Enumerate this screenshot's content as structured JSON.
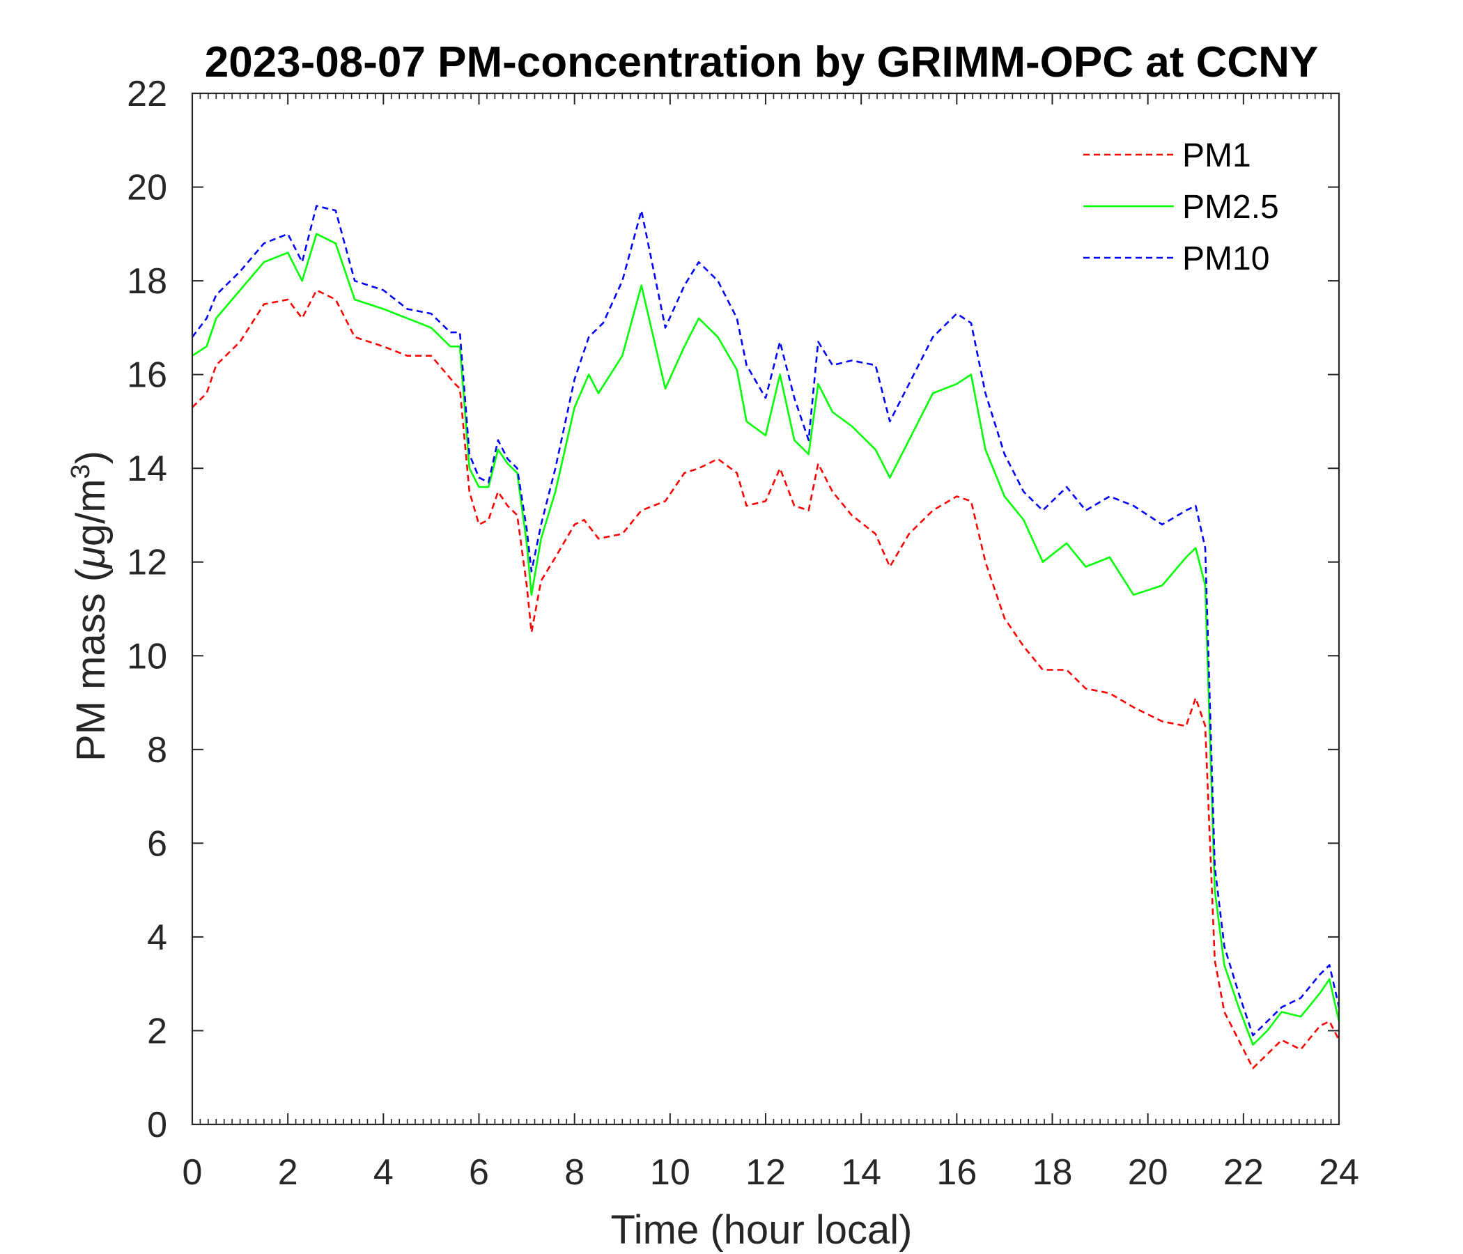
{
  "chart_data": {
    "type": "line",
    "title": "2023-08-07 PM-concentration by GRIMM-OPC at CCNY",
    "xlabel": "Time (hour local)",
    "ylabel_prefix": "PM mass (",
    "ylabel_mu": "μ",
    "ylabel_unit": "g/m",
    "ylabel_sup": "3",
    "ylabel_suffix": ")",
    "xlim": [
      0,
      24
    ],
    "ylim": [
      0,
      22
    ],
    "xticks": [
      0,
      2,
      4,
      6,
      8,
      10,
      12,
      14,
      16,
      18,
      20,
      22,
      24
    ],
    "yticks": [
      0,
      2,
      4,
      6,
      8,
      10,
      12,
      14,
      16,
      18,
      20,
      22
    ],
    "xtick_labels": [
      "0",
      "2",
      "4",
      "6",
      "8",
      "10",
      "12",
      "14",
      "16",
      "18",
      "20",
      "22",
      "24"
    ],
    "ytick_labels": [
      "0",
      "2",
      "4",
      "6",
      "8",
      "10",
      "12",
      "14",
      "16",
      "18",
      "20",
      "22"
    ],
    "grid": false,
    "legend_position": "top-right",
    "series": [
      {
        "name": "PM1",
        "color": "#ff0000",
        "style": "dashed",
        "x": [
          0,
          0.3,
          0.5,
          1.0,
          1.5,
          2.0,
          2.3,
          2.6,
          3.0,
          3.4,
          4.0,
          4.5,
          5.0,
          5.5,
          5.6,
          5.8,
          6.0,
          6.2,
          6.4,
          6.6,
          6.8,
          7.0,
          7.1,
          7.3,
          7.6,
          8.0,
          8.2,
          8.5,
          9.0,
          9.4,
          9.9,
          10.3,
          10.6,
          11.0,
          11.4,
          11.6,
          12.0,
          12.3,
          12.6,
          12.9,
          13.1,
          13.4,
          13.8,
          14.3,
          14.6,
          15.0,
          15.5,
          16.0,
          16.3,
          16.6,
          17.0,
          17.4,
          17.8,
          18.3,
          18.7,
          19.2,
          19.7,
          20.3,
          20.8,
          21.0,
          21.2,
          21.4,
          21.6,
          21.9,
          22.2,
          22.5,
          22.8,
          23.2,
          23.6,
          23.8,
          24.0
        ],
        "values": [
          15.3,
          15.6,
          16.2,
          16.7,
          17.5,
          17.6,
          17.2,
          17.8,
          17.6,
          16.8,
          16.6,
          16.4,
          16.4,
          15.8,
          15.7,
          13.5,
          12.8,
          12.9,
          13.5,
          13.2,
          13.0,
          11.5,
          10.5,
          11.6,
          12.1,
          12.8,
          12.9,
          12.5,
          12.6,
          13.1,
          13.3,
          13.9,
          14.0,
          14.2,
          13.9,
          13.2,
          13.3,
          14.0,
          13.2,
          13.1,
          14.1,
          13.5,
          13.0,
          12.6,
          11.9,
          12.6,
          13.1,
          13.4,
          13.3,
          12.0,
          10.8,
          10.2,
          9.7,
          9.7,
          9.3,
          9.2,
          8.9,
          8.6,
          8.5,
          9.1,
          8.5,
          3.5,
          2.4,
          1.8,
          1.2,
          1.5,
          1.8,
          1.6,
          2.1,
          2.2,
          1.8
        ]
      },
      {
        "name": "PM2.5",
        "color": "#00ff00",
        "style": "solid",
        "x": [
          0,
          0.3,
          0.5,
          1.0,
          1.5,
          2.0,
          2.3,
          2.6,
          3.0,
          3.4,
          4.0,
          4.5,
          5.0,
          5.4,
          5.6,
          5.8,
          6.0,
          6.2,
          6.4,
          6.6,
          6.8,
          7.0,
          7.1,
          7.3,
          7.6,
          8.0,
          8.3,
          8.5,
          9.0,
          9.4,
          9.9,
          10.3,
          10.6,
          11.0,
          11.4,
          11.6,
          12.0,
          12.3,
          12.6,
          12.9,
          13.1,
          13.4,
          13.8,
          14.3,
          14.6,
          15.0,
          15.5,
          16.0,
          16.3,
          16.6,
          17.0,
          17.4,
          17.8,
          18.3,
          18.7,
          19.2,
          19.7,
          20.3,
          20.8,
          21.0,
          21.2,
          21.4,
          21.6,
          21.9,
          22.2,
          22.5,
          22.8,
          23.2,
          23.6,
          23.8,
          24.0
        ],
        "values": [
          16.4,
          16.6,
          17.2,
          17.8,
          18.4,
          18.6,
          18.0,
          19.0,
          18.8,
          17.6,
          17.4,
          17.2,
          17.0,
          16.6,
          16.6,
          14.0,
          13.6,
          13.6,
          14.4,
          14.1,
          13.9,
          12.4,
          11.3,
          12.5,
          13.5,
          15.3,
          16.0,
          15.6,
          16.4,
          17.9,
          15.7,
          16.6,
          17.2,
          16.8,
          16.1,
          15.0,
          14.7,
          16.0,
          14.6,
          14.3,
          15.8,
          15.2,
          14.9,
          14.4,
          13.8,
          14.6,
          15.6,
          15.8,
          16.0,
          14.4,
          13.4,
          12.9,
          12.0,
          12.4,
          11.9,
          12.1,
          11.3,
          11.5,
          12.1,
          12.3,
          11.5,
          5.0,
          3.4,
          2.5,
          1.7,
          2.0,
          2.4,
          2.3,
          2.8,
          3.1,
          2.2
        ]
      },
      {
        "name": "PM10",
        "color": "#0000ff",
        "style": "dashed",
        "x": [
          0,
          0.3,
          0.5,
          1.0,
          1.5,
          2.0,
          2.3,
          2.6,
          3.0,
          3.4,
          4.0,
          4.5,
          5.0,
          5.4,
          5.6,
          5.8,
          6.0,
          6.2,
          6.4,
          6.6,
          6.8,
          7.0,
          7.1,
          7.3,
          7.6,
          8.0,
          8.3,
          8.6,
          9.0,
          9.4,
          9.9,
          10.3,
          10.6,
          11.0,
          11.4,
          11.6,
          12.0,
          12.3,
          12.6,
          12.9,
          13.1,
          13.4,
          13.8,
          14.3,
          14.6,
          15.0,
          15.5,
          16.0,
          16.3,
          16.6,
          17.0,
          17.4,
          17.8,
          18.3,
          18.7,
          19.2,
          19.7,
          20.3,
          20.8,
          21.0,
          21.2,
          21.4,
          21.6,
          21.9,
          22.2,
          22.5,
          22.8,
          23.2,
          23.6,
          23.8,
          24.0
        ],
        "values": [
          16.8,
          17.2,
          17.7,
          18.2,
          18.8,
          19.0,
          18.4,
          19.6,
          19.5,
          18.0,
          17.8,
          17.4,
          17.3,
          16.9,
          16.9,
          14.3,
          13.8,
          13.7,
          14.6,
          14.2,
          14.0,
          12.7,
          11.8,
          12.8,
          14.0,
          15.9,
          16.8,
          17.1,
          18.0,
          19.5,
          17.0,
          17.9,
          18.4,
          18.0,
          17.2,
          16.2,
          15.5,
          16.7,
          15.5,
          14.6,
          16.7,
          16.2,
          16.3,
          16.2,
          15.0,
          15.8,
          16.8,
          17.3,
          17.1,
          15.6,
          14.3,
          13.5,
          13.1,
          13.6,
          13.1,
          13.4,
          13.2,
          12.8,
          13.1,
          13.2,
          12.3,
          5.5,
          3.8,
          2.8,
          1.9,
          2.2,
          2.5,
          2.7,
          3.2,
          3.4,
          2.5
        ]
      }
    ]
  }
}
